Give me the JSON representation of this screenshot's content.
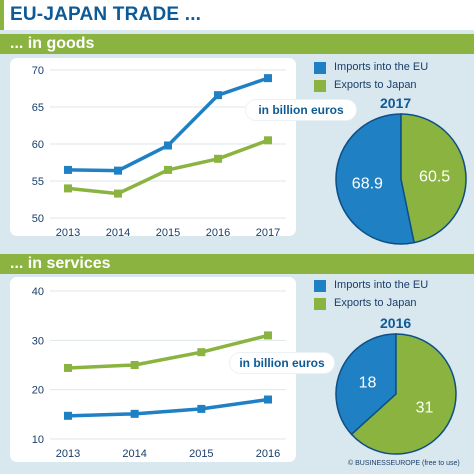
{
  "title": "EU-JAPAN TRADE ...",
  "copyright": "© BUSINESSEUROPE (free to use)",
  "colors": {
    "imports": "#1f80c3",
    "exports": "#8bb33f",
    "navy": "#0d5a96"
  },
  "goods": {
    "heading": "... in goods",
    "unit": "in billion euros",
    "legend": [
      {
        "label": "Imports into the EU",
        "color": "#1f80c3"
      },
      {
        "label": "Exports to Japan",
        "color": "#8bb33f"
      }
    ],
    "pie_year": "2017",
    "pie_values": [
      "68.9",
      "60.5"
    ]
  },
  "services": {
    "heading": "... in services",
    "unit": "in billion euros",
    "legend": [
      {
        "label": "Imports into the EU",
        "color": "#1f80c3"
      },
      {
        "label": "Exports to Japan",
        "color": "#8bb33f"
      }
    ],
    "pie_year": "2016",
    "pie_values": [
      "18",
      "31"
    ]
  },
  "chart_data": [
    {
      "type": "line",
      "categories": [
        "2013",
        "2014",
        "2015",
        "2016",
        "2017"
      ],
      "yticks": [
        "50",
        "55",
        "60",
        "65",
        "70"
      ],
      "ylim": [
        50,
        70
      ],
      "grid": true,
      "series": [
        {
          "name": "Imports into the EU",
          "values": [
            56.5,
            56.4,
            59.8,
            66.6,
            68.9
          ],
          "color": "#1f80c3"
        },
        {
          "name": "Exports to Japan",
          "values": [
            54.0,
            53.3,
            56.5,
            58.0,
            60.5
          ],
          "color": "#8bb33f"
        }
      ]
    },
    {
      "type": "pie",
      "title": "2017",
      "slices": [
        {
          "name": "Imports into the EU",
          "value": 68.9,
          "color": "#1f80c3"
        },
        {
          "name": "Exports to Japan",
          "value": 60.5,
          "color": "#8bb33f"
        }
      ]
    },
    {
      "type": "line",
      "categories": [
        "2013",
        "2014",
        "2015",
        "2016"
      ],
      "yticks": [
        "10",
        "20",
        "30",
        "40"
      ],
      "ylim": [
        10,
        40
      ],
      "grid": true,
      "series": [
        {
          "name": "Imports into the EU",
          "values": [
            14.7,
            15.1,
            16.1,
            18.0
          ],
          "color": "#1f80c3"
        },
        {
          "name": "Exports to Japan",
          "values": [
            24.4,
            25.0,
            27.6,
            31.0
          ],
          "color": "#8bb33f"
        }
      ]
    },
    {
      "type": "pie",
      "title": "2016",
      "slices": [
        {
          "name": "Imports into the EU",
          "value": 18,
          "color": "#1f80c3"
        },
        {
          "name": "Exports to Japan",
          "value": 31,
          "color": "#8bb33f"
        }
      ]
    }
  ]
}
